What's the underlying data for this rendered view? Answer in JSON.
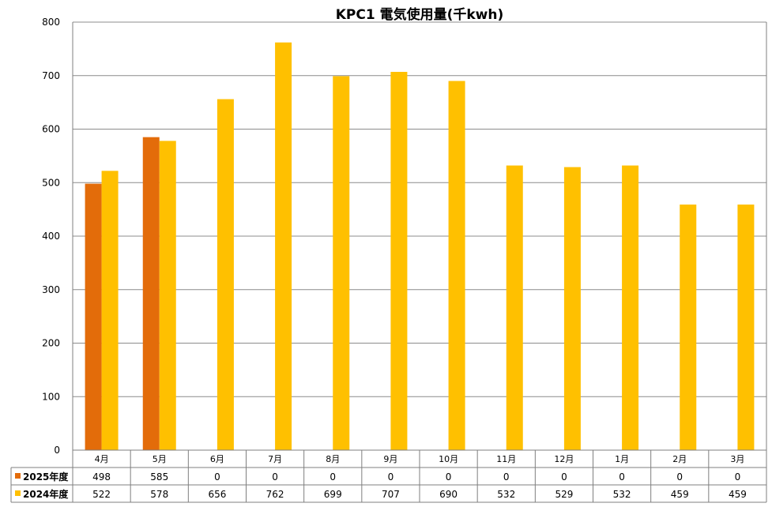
{
  "chart_data": {
    "type": "bar",
    "title": "KPC1 電気使用量(千kwh)",
    "categories": [
      "4月",
      "5月",
      "6月",
      "7月",
      "8月",
      "9月",
      "10月",
      "11月",
      "12月",
      "1月",
      "2月",
      "3月"
    ],
    "series": [
      {
        "name": "2025年度",
        "color": "#E36C0A",
        "values": [
          498,
          585,
          0,
          0,
          0,
          0,
          0,
          0,
          0,
          0,
          0,
          0
        ]
      },
      {
        "name": "2024年度",
        "color": "#FFC000",
        "values": [
          522,
          578,
          656,
          762,
          699,
          707,
          690,
          532,
          529,
          532,
          459,
          459
        ]
      }
    ],
    "ylim": [
      0,
      800
    ],
    "yticks": [
      0,
      100,
      200,
      300,
      400,
      500,
      600,
      700,
      800
    ],
    "grid": true,
    "legend": "data-table"
  }
}
